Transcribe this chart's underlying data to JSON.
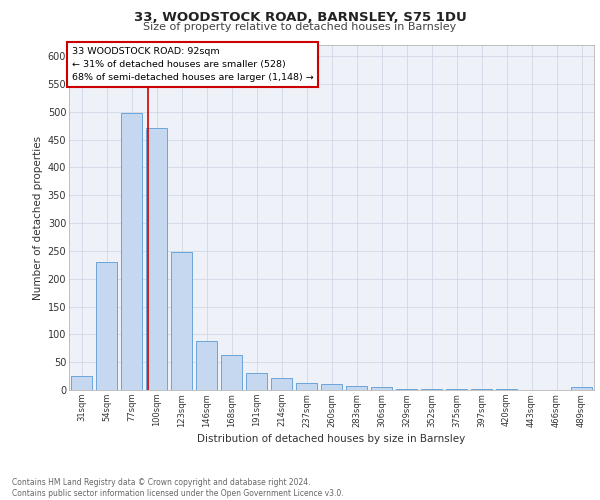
{
  "title1": "33, WOODSTOCK ROAD, BARNSLEY, S75 1DU",
  "title2": "Size of property relative to detached houses in Barnsley",
  "xlabel": "Distribution of detached houses by size in Barnsley",
  "ylabel": "Number of detached properties",
  "bar_labels": [
    "31sqm",
    "54sqm",
    "77sqm",
    "100sqm",
    "123sqm",
    "146sqm",
    "168sqm",
    "191sqm",
    "214sqm",
    "237sqm",
    "260sqm",
    "283sqm",
    "306sqm",
    "329sqm",
    "352sqm",
    "375sqm",
    "397sqm",
    "420sqm",
    "443sqm",
    "466sqm",
    "489sqm"
  ],
  "bar_values": [
    25,
    230,
    497,
    470,
    248,
    88,
    63,
    30,
    22,
    13,
    10,
    7,
    5,
    2,
    1,
    1,
    1,
    1,
    0,
    0,
    5
  ],
  "bar_color": "#c5d8f0",
  "bar_edge_color": "#5b9bd5",
  "annotation_text": "33 WOODSTOCK ROAD: 92sqm\n← 31% of detached houses are smaller (528)\n68% of semi-detached houses are larger (1,148) →",
  "annotation_box_color": "#ffffff",
  "annotation_box_edge_color": "#cc0000",
  "vline_color": "#cc0000",
  "grid_color": "#d0d8e8",
  "background_color": "#eef2f8",
  "footer_text": "Contains HM Land Registry data © Crown copyright and database right 2024.\nContains public sector information licensed under the Open Government Licence v3.0.",
  "ylim": [
    0,
    620
  ],
  "yticks": [
    0,
    50,
    100,
    150,
    200,
    250,
    300,
    350,
    400,
    450,
    500,
    550,
    600
  ]
}
